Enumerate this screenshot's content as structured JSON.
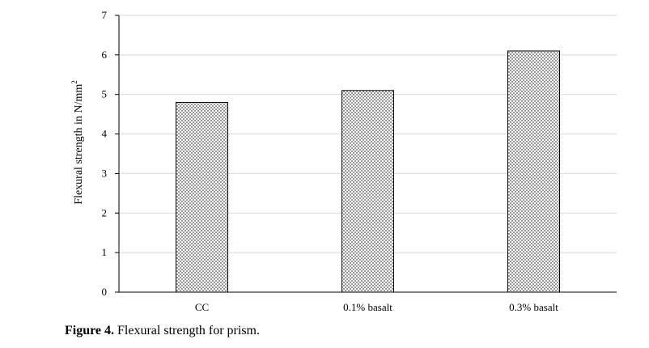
{
  "caption": {
    "label": "Figure 4.",
    "text": " Flexural strength for prism."
  },
  "chart_data": {
    "type": "bar",
    "categories": [
      "CC",
      "0.1% basalt",
      "0.3% basalt"
    ],
    "values": [
      4.8,
      5.1,
      6.1
    ],
    "ylabel_main": "Flexural strength in N/mm",
    "ylabel_sup": "2",
    "xlabel": "",
    "ylim": [
      0,
      7
    ],
    "yticks": [
      0,
      1,
      2,
      3,
      4,
      5,
      6,
      7
    ],
    "grid": true,
    "bar_fill": "dotted",
    "bar_color": "#ffffff",
    "bar_stroke": "#000000",
    "grid_color": "#d9d9d9"
  }
}
